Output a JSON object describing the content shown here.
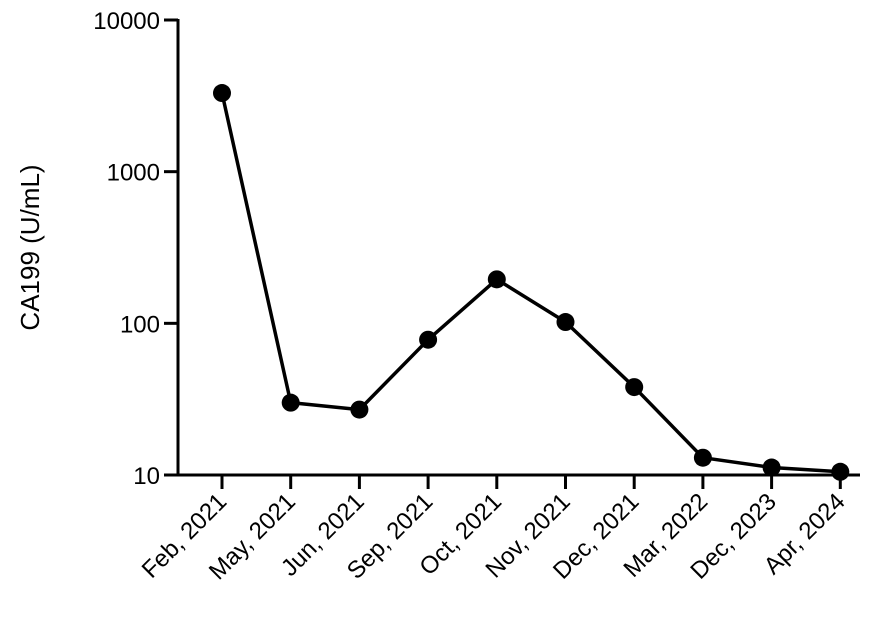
{
  "chart_data": {
    "type": "line",
    "title": "",
    "xlabel": "",
    "ylabel": "CA199 (U/mL)",
    "y_scale": "log",
    "ylim": [
      10,
      10000
    ],
    "y_ticks": [
      10,
      100,
      1000,
      10000
    ],
    "y_tick_labels": [
      "10",
      "100",
      "1000",
      "10000"
    ],
    "grid": false,
    "legend": "none",
    "categories": [
      "Feb, 2021",
      "May, 2021",
      "Jun, 2021",
      "Sep, 2021",
      "Oct, 2021",
      "Nov, 2021",
      "Dec, 2021",
      "Mar, 2022",
      "Dec, 2023",
      "Apr, 2024"
    ],
    "series": [
      {
        "values": [
          3300,
          30,
          27,
          78,
          195,
          102,
          38,
          13,
          11.2,
          10.5
        ],
        "color": "#000000",
        "marker": "circle"
      }
    ]
  }
}
